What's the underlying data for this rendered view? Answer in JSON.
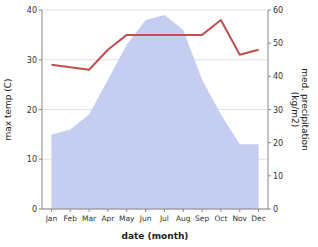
{
  "chart_data": {
    "type": "line",
    "x_label": "date (month)",
    "y_label": "max temp (C)",
    "y2_label": "med. precipitation\n(kg/m2)",
    "categories": [
      "Jan",
      "Feb",
      "Mar",
      "Apr",
      "May",
      "Jun",
      "Jul",
      "Aug",
      "Sep",
      "Oct",
      "Nov",
      "Dec"
    ],
    "series": [
      {
        "type": "area",
        "color": "#c5cef0",
        "values": [
          15,
          16,
          19,
          26,
          33,
          38,
          39,
          36,
          26,
          19,
          13,
          13
        ]
      },
      {
        "type": "line",
        "color": "#c0504d",
        "values": [
          29,
          28.5,
          28,
          32,
          35,
          35,
          35,
          35,
          35,
          38,
          31,
          32
        ]
      }
    ],
    "ylim": [
      0,
      40
    ],
    "yticks": [
      0,
      10,
      20,
      30,
      40
    ],
    "y2lim": [
      0,
      60
    ],
    "y2ticks": [
      0,
      10,
      20,
      30,
      40,
      50,
      60
    ],
    "grid": true
  }
}
